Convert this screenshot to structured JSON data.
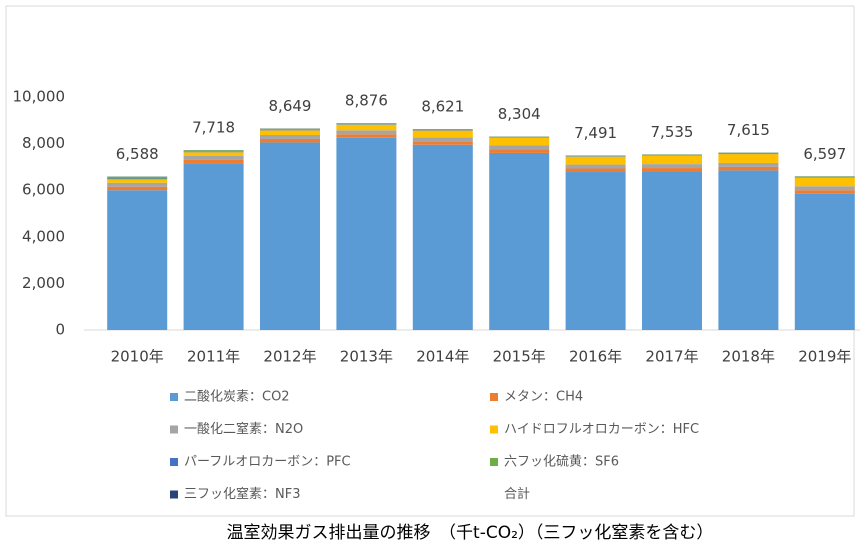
{
  "chart_data": {
    "type": "bar",
    "stacked": true,
    "title": "温室効果ガス排出量の推移　（千t-CO₂）（三フッ化窒素を含む）",
    "categories": [
      "2010年",
      "2011年",
      "2012年",
      "2013年",
      "2014年",
      "2015年",
      "2016年",
      "2017年",
      "2018年",
      "2019年"
    ],
    "series": [
      {
        "name": "二酸化炭素：CO2",
        "color": "#5b9bd5",
        "values": [
          6000,
          7150,
          8050,
          8250,
          7950,
          7600,
          6780,
          6800,
          6850,
          5850
        ]
      },
      {
        "name": "メタン：CH4",
        "color": "#ed7d31",
        "values": [
          150,
          150,
          150,
          150,
          150,
          150,
          150,
          150,
          150,
          150
        ]
      },
      {
        "name": "一酸化二窒素：N2O",
        "color": "#a5a5a5",
        "values": [
          170,
          170,
          170,
          170,
          170,
          170,
          170,
          170,
          170,
          170
        ]
      },
      {
        "name": "ハイドロフルオロカーボン：HFC",
        "color": "#ffc000",
        "values": [
          150,
          160,
          200,
          240,
          290,
          330,
          340,
          360,
          380,
          380
        ]
      },
      {
        "name": "パーフルオロカーボン：PFC",
        "color": "#4472c4",
        "values": [
          30,
          20,
          20,
          20,
          20,
          20,
          20,
          20,
          20,
          20
        ]
      },
      {
        "name": "六フッ化硫黄：SF6",
        "color": "#70ad47",
        "values": [
          80,
          60,
          50,
          40,
          35,
          28,
          25,
          29,
          39,
          21
        ]
      },
      {
        "name": "三フッ化窒素：NF3",
        "color": "#264478",
        "values": [
          8,
          8,
          9,
          6,
          6,
          6,
          6,
          6,
          6,
          6
        ]
      }
    ],
    "totals": {
      "name": "合計",
      "values": [
        6588,
        7718,
        8649,
        8876,
        8621,
        8304,
        7491,
        7535,
        7615,
        6597
      ],
      "value_labels": [
        "6,588",
        "7,718",
        "8,649",
        "8,876",
        "8,621",
        "8,304",
        "7,491",
        "7,535",
        "7,615",
        "6,597"
      ]
    },
    "ylim": [
      0,
      10000
    ],
    "yticks": [
      0,
      {
        "value": 2000,
        "label": "2,000"
      },
      {
        "value": 4000,
        "label": "4,000"
      },
      {
        "value": 6000,
        "label": "6,000"
      },
      {
        "value": 8000,
        "label": "8,000"
      },
      {
        "value": 10000,
        "label": "10,000"
      }
    ],
    "grid": false,
    "legend": "bottom"
  }
}
